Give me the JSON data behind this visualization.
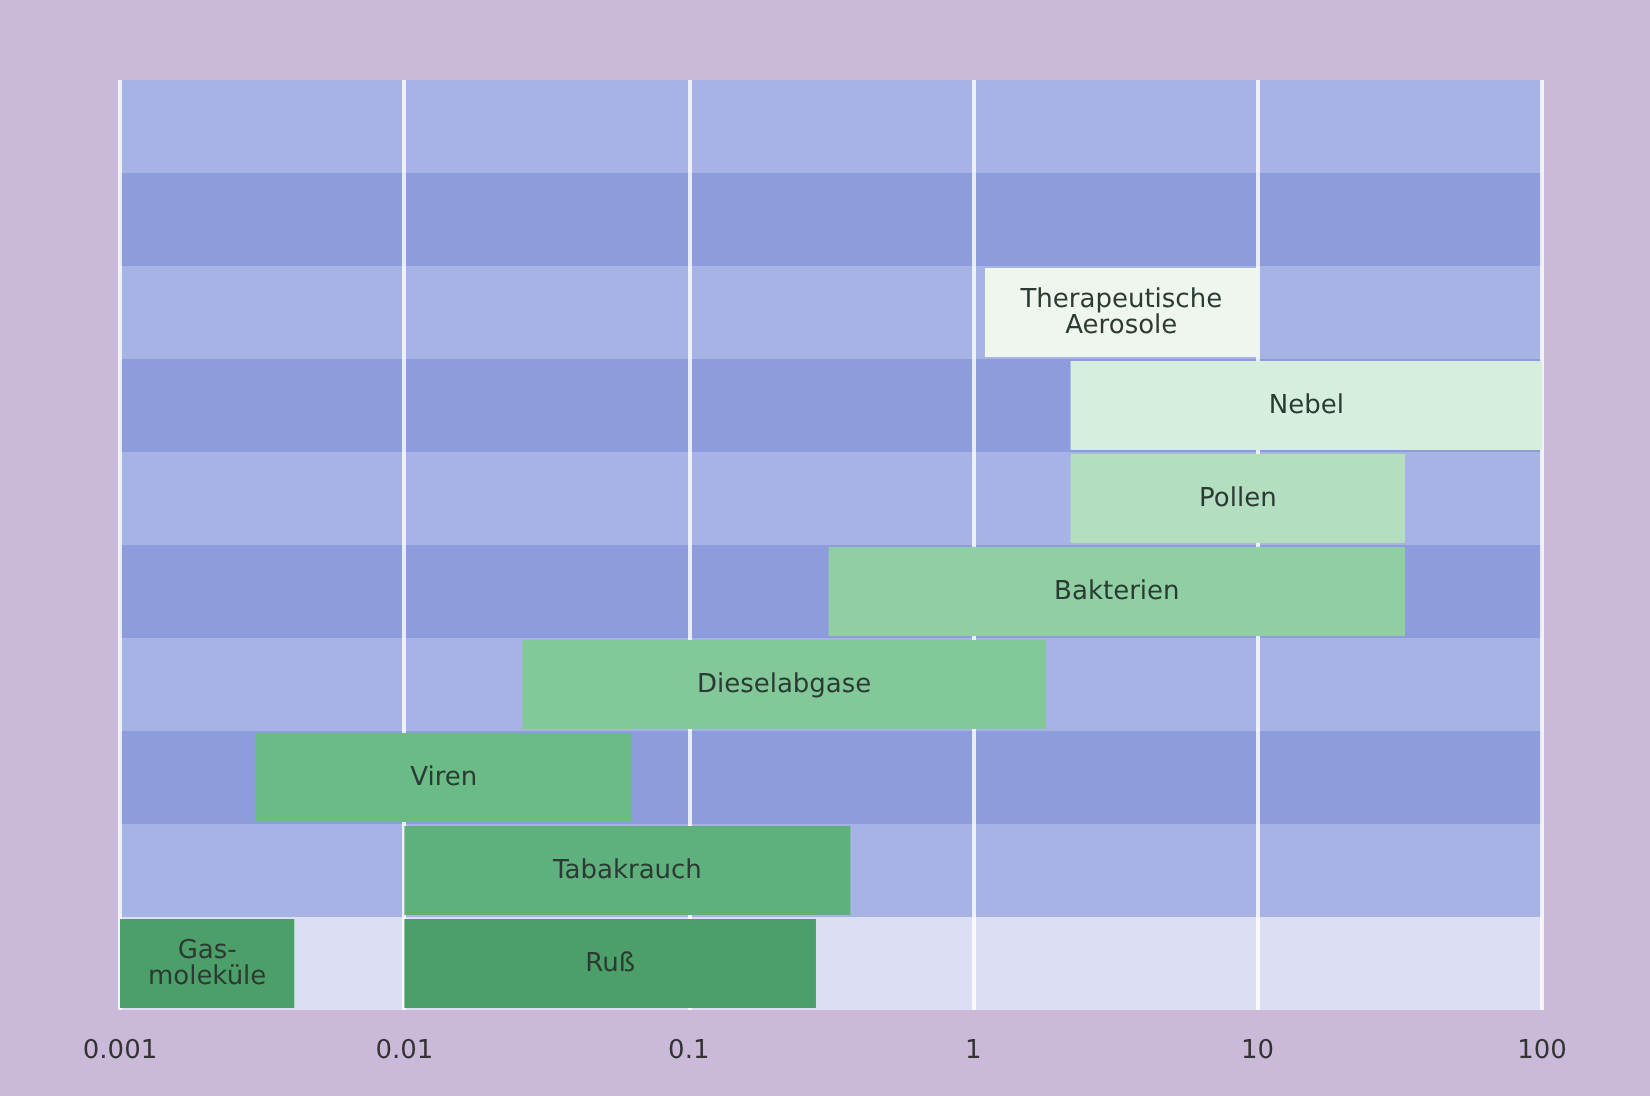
{
  "chart_data": {
    "type": "bar",
    "orientation": "horizontal",
    "categories": [
      null,
      null,
      null,
      null,
      null,
      null,
      null,
      null,
      null,
      null
    ],
    "series": [
      {
        "colors": [
          null,
          null,
          "#eef6ee",
          "#d5eedd",
          "#b4dec0",
          "#8fcfa3",
          "#82c899",
          "#6bbb86",
          "#5eb07c",
          "#4c9f68"
        ],
        "base": [
          null,
          null,
          1.1,
          2.2,
          2.2,
          0.31,
          0.026,
          0.003,
          0.01,
          0.001
        ],
        "values": [
          null,
          null,
          8.9,
          97.8,
          30.8,
          32.69,
          1.774,
          0.06,
          0.36,
          0.0031
        ],
        "value_labels": [
          null,
          null,
          "Therapeutische\nAerosole",
          "Nebel",
          "Pollen",
          "Bakterien",
          "Dieselabgase",
          "Viren",
          "Tabakrauch",
          "Gas-\nmoleküle"
        ]
      },
      {
        "colors": [
          null,
          null,
          null,
          null,
          null,
          null,
          null,
          null,
          null,
          "#4c9f68"
        ],
        "base": [
          null,
          null,
          null,
          null,
          null,
          null,
          null,
          null,
          null,
          0.01
        ],
        "values": [
          null,
          null,
          null,
          null,
          null,
          null,
          null,
          null,
          null,
          0.27
        ],
        "value_labels": [
          null,
          null,
          null,
          null,
          null,
          null,
          null,
          null,
          null,
          "Ruß"
        ]
      }
    ],
    "log": "x",
    "xlim": [
      0.001,
      100
    ],
    "xticks": [
      0.001,
      0.01,
      0.1,
      1,
      10,
      100
    ],
    "grid": "x",
    "tick_labels": "x"
  }
}
